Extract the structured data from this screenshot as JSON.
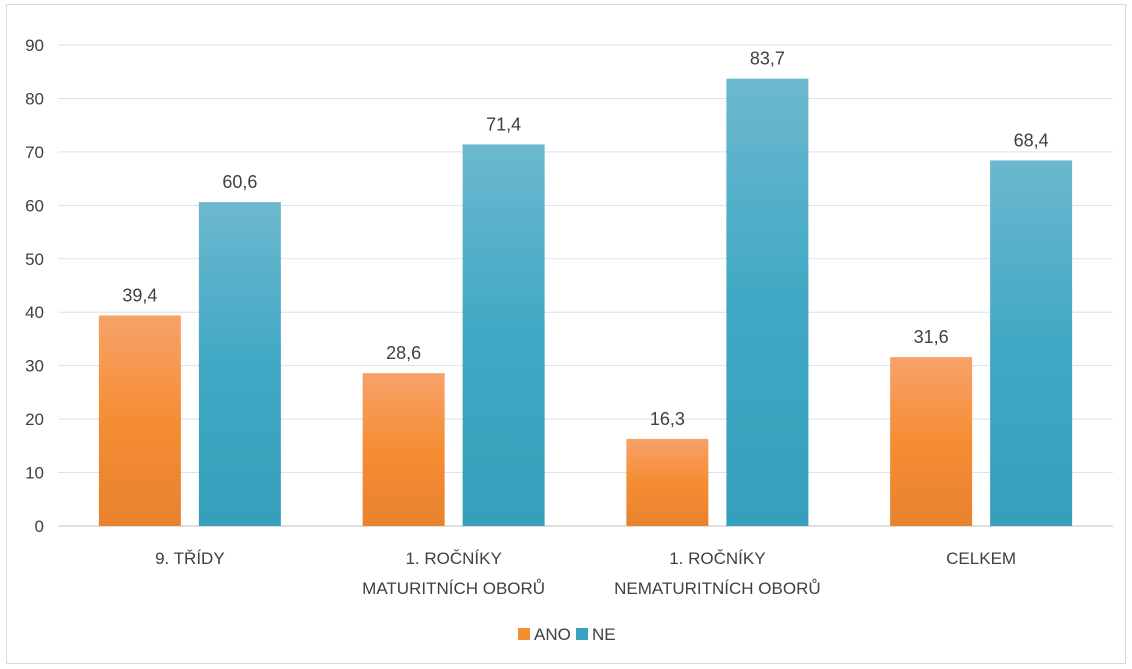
{
  "chart_data": {
    "type": "bar",
    "categories": [
      [
        "9. TŘÍDY"
      ],
      [
        "1. ROČNÍKY",
        "MATURITNÍCH OBORŮ"
      ],
      [
        "1. ROČNÍKY",
        "NEMATURITNÍCH OBORŮ"
      ],
      [
        "CELKEM"
      ]
    ],
    "series": [
      {
        "name": "ANO",
        "values": [
          39.4,
          28.6,
          16.3,
          31.6
        ],
        "labels": [
          "39,4",
          "28,6",
          "16,3",
          "31,6"
        ],
        "color": "#f28e2b"
      },
      {
        "name": "NE",
        "values": [
          60.6,
          71.4,
          83.7,
          68.4
        ],
        "labels": [
          "60,6",
          "71,4",
          "83,7",
          "68,4"
        ],
        "color": "#3ba3bf"
      }
    ],
    "ylim": [
      0,
      90
    ],
    "yticks": [
      0,
      10,
      20,
      30,
      40,
      50,
      60,
      70,
      80,
      90
    ],
    "grid": true,
    "legend_position": "bottom"
  }
}
